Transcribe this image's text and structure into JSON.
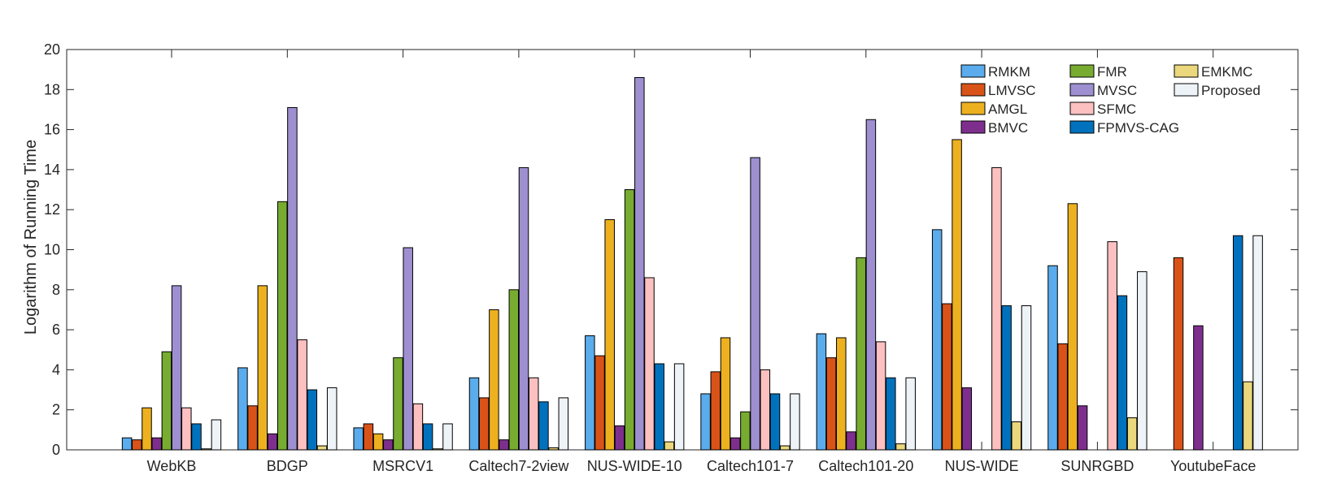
{
  "chart_data": {
    "type": "bar",
    "title": "",
    "xlabel": "",
    "ylabel": "Logarithm of Running Time",
    "ylim": [
      0,
      20
    ],
    "yticks": [
      0,
      2,
      4,
      6,
      8,
      10,
      12,
      14,
      16,
      18,
      20
    ],
    "grid": false,
    "legend_position": "top-right",
    "categories": [
      "WebKB",
      "BDGP",
      "MSRCV1",
      "Caltech7-2view",
      "NUS-WIDE-10",
      "Caltech101-7",
      "Caltech101-20",
      "NUS-WIDE",
      "SUNRGBD",
      "YoutubeFace"
    ],
    "series": [
      {
        "name": "RMKM",
        "color": "#5aacec",
        "values": [
          0.6,
          4.1,
          1.1,
          3.6,
          5.7,
          2.8,
          5.8,
          11.0,
          9.2,
          0.0
        ]
      },
      {
        "name": "LMVSC",
        "color": "#d95319",
        "values": [
          0.5,
          2.2,
          1.3,
          2.6,
          4.7,
          3.9,
          4.6,
          7.3,
          5.3,
          9.6
        ]
      },
      {
        "name": "AMGL",
        "color": "#edb120",
        "values": [
          2.1,
          8.2,
          0.8,
          7.0,
          11.5,
          5.6,
          5.6,
          15.5,
          12.3,
          0.0
        ]
      },
      {
        "name": "BMVC",
        "color": "#7e2f8e",
        "values": [
          0.6,
          0.8,
          0.5,
          0.5,
          1.2,
          0.6,
          0.9,
          3.1,
          2.2,
          6.2
        ]
      },
      {
        "name": "FMR",
        "color": "#77ac30",
        "values": [
          4.9,
          12.4,
          4.6,
          8.0,
          13.0,
          1.9,
          9.6,
          0.0,
          0.0,
          0.0
        ]
      },
      {
        "name": "MVSC",
        "color": "#9e8fd0",
        "values": [
          8.2,
          17.1,
          10.1,
          14.1,
          18.6,
          14.6,
          16.5,
          0.0,
          0.0,
          0.0
        ]
      },
      {
        "name": "SFMC",
        "color": "#fcc0c0",
        "values": [
          2.1,
          5.5,
          2.3,
          3.6,
          8.6,
          4.0,
          5.4,
          14.1,
          10.4,
          0.0
        ]
      },
      {
        "name": "FPMVS-CAG",
        "color": "#0072bd",
        "values": [
          1.3,
          3.0,
          1.3,
          2.4,
          4.3,
          2.8,
          3.6,
          7.2,
          7.7,
          10.7
        ]
      },
      {
        "name": "EMKMC",
        "color": "#ebd77c",
        "values": [
          0.05,
          0.2,
          0.05,
          0.1,
          0.4,
          0.2,
          0.3,
          1.4,
          1.6,
          3.4
        ]
      },
      {
        "name": "Proposed",
        "color": "#eef3f8",
        "values": [
          1.5,
          3.1,
          1.3,
          2.6,
          4.3,
          2.8,
          3.6,
          7.2,
          8.9,
          10.7
        ]
      }
    ]
  }
}
